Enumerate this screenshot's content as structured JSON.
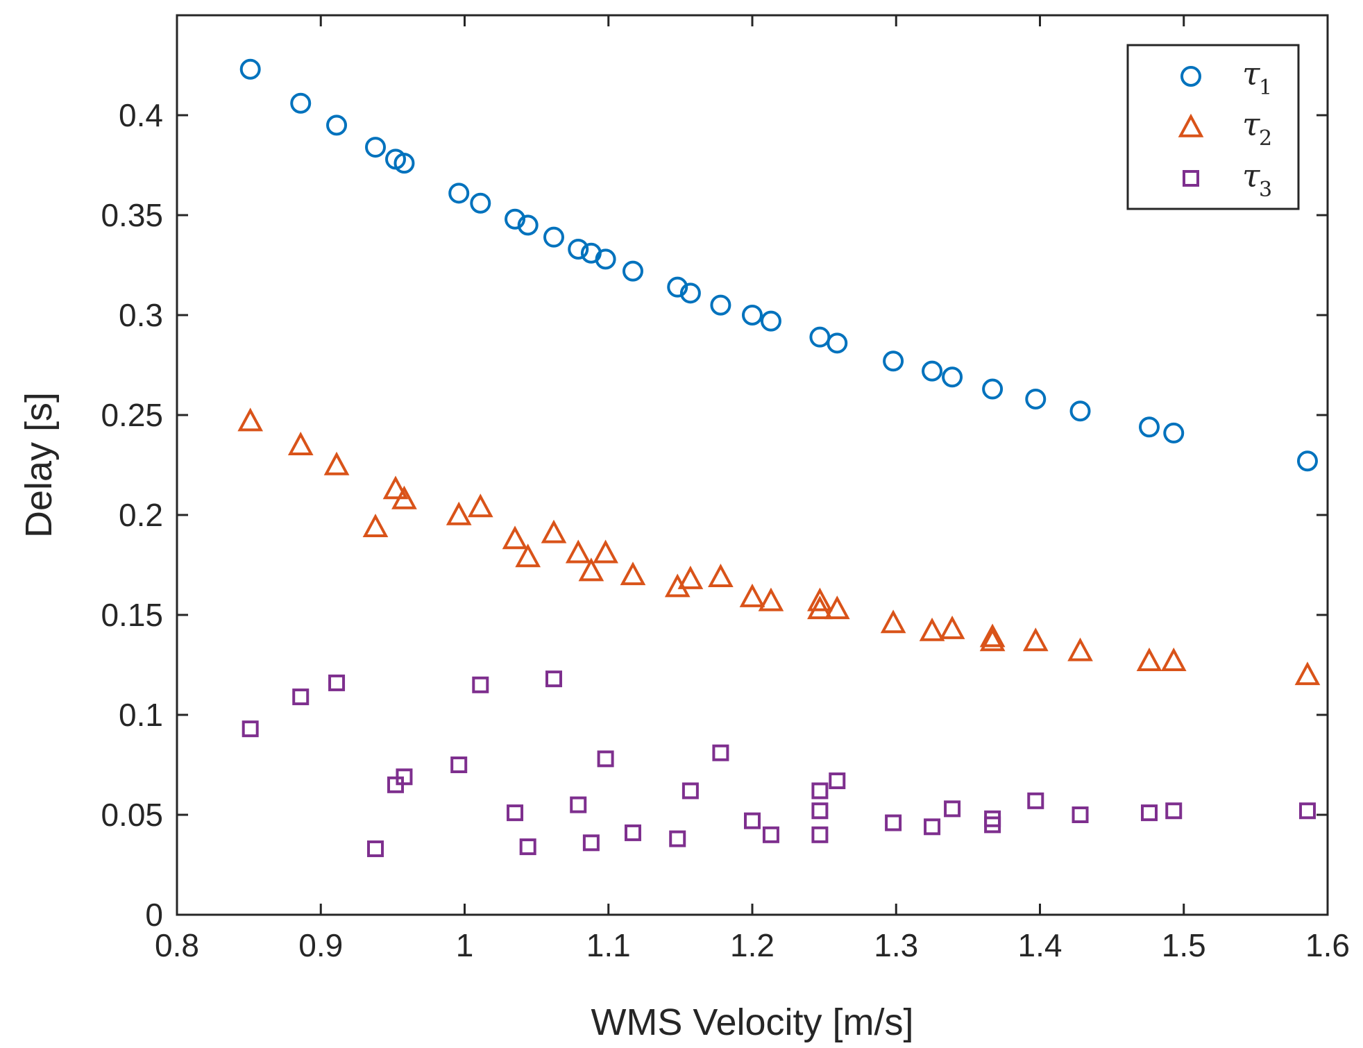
{
  "chart_data": {
    "type": "scatter",
    "title": "",
    "xlabel": "WMS Velocity [m/s]",
    "ylabel": "Delay [s]",
    "xlim": [
      0.8,
      1.6
    ],
    "ylim": [
      0,
      0.45
    ],
    "xticks": [
      "0.8",
      "0.9",
      "1",
      "1.1",
      "1.2",
      "1.3",
      "1.4",
      "1.5",
      "1.6"
    ],
    "yticks": [
      "0",
      "0.05",
      "0.1",
      "0.15",
      "0.2",
      "0.25",
      "0.3",
      "0.35",
      "0.4"
    ],
    "grid": false,
    "legend_position": "top-right",
    "series": [
      {
        "name": "τ1",
        "symbol": "τ",
        "subscript": "1",
        "marker": "circle",
        "color": "#0072BD",
        "points": [
          [
            0.851,
            0.423
          ],
          [
            0.886,
            0.406
          ],
          [
            0.911,
            0.395
          ],
          [
            0.938,
            0.384
          ],
          [
            0.952,
            0.378
          ],
          [
            0.958,
            0.376
          ],
          [
            0.996,
            0.361
          ],
          [
            1.011,
            0.356
          ],
          [
            1.035,
            0.348
          ],
          [
            1.044,
            0.345
          ],
          [
            1.062,
            0.339
          ],
          [
            1.079,
            0.333
          ],
          [
            1.088,
            0.331
          ],
          [
            1.098,
            0.328
          ],
          [
            1.117,
            0.322
          ],
          [
            1.148,
            0.314
          ],
          [
            1.157,
            0.311
          ],
          [
            1.178,
            0.305
          ],
          [
            1.2,
            0.3
          ],
          [
            1.213,
            0.297
          ],
          [
            1.247,
            0.289
          ],
          [
            1.259,
            0.286
          ],
          [
            1.298,
            0.277
          ],
          [
            1.325,
            0.272
          ],
          [
            1.339,
            0.269
          ],
          [
            1.367,
            0.263
          ],
          [
            1.397,
            0.258
          ],
          [
            1.428,
            0.252
          ],
          [
            1.476,
            0.244
          ],
          [
            1.493,
            0.241
          ],
          [
            1.586,
            0.227
          ]
        ]
      },
      {
        "name": "τ2",
        "symbol": "τ",
        "subscript": "2",
        "marker": "triangle",
        "color": "#D95319",
        "points": [
          [
            0.851,
            0.247
          ],
          [
            0.886,
            0.235
          ],
          [
            0.911,
            0.225
          ],
          [
            0.938,
            0.194
          ],
          [
            0.952,
            0.213
          ],
          [
            0.958,
            0.208
          ],
          [
            0.996,
            0.2
          ],
          [
            1.011,
            0.204
          ],
          [
            1.035,
            0.188
          ],
          [
            1.044,
            0.179
          ],
          [
            1.062,
            0.191
          ],
          [
            1.079,
            0.181
          ],
          [
            1.088,
            0.172
          ],
          [
            1.098,
            0.181
          ],
          [
            1.117,
            0.17
          ],
          [
            1.148,
            0.164
          ],
          [
            1.157,
            0.168
          ],
          [
            1.178,
            0.169
          ],
          [
            1.2,
            0.159
          ],
          [
            1.213,
            0.157
          ],
          [
            1.247,
            0.157
          ],
          [
            1.247,
            0.153
          ],
          [
            1.259,
            0.153
          ],
          [
            1.298,
            0.146
          ],
          [
            1.325,
            0.142
          ],
          [
            1.339,
            0.143
          ],
          [
            1.367,
            0.139
          ],
          [
            1.367,
            0.137
          ],
          [
            1.397,
            0.137
          ],
          [
            1.428,
            0.132
          ],
          [
            1.476,
            0.127
          ],
          [
            1.493,
            0.127
          ],
          [
            1.586,
            0.12
          ]
        ]
      },
      {
        "name": "τ3",
        "symbol": "τ",
        "subscript": "3",
        "marker": "square",
        "color": "#7E2F8E",
        "points": [
          [
            0.851,
            0.093
          ],
          [
            0.886,
            0.109
          ],
          [
            0.911,
            0.116
          ],
          [
            0.938,
            0.033
          ],
          [
            0.952,
            0.065
          ],
          [
            0.958,
            0.069
          ],
          [
            0.996,
            0.075
          ],
          [
            1.011,
            0.115
          ],
          [
            1.035,
            0.051
          ],
          [
            1.044,
            0.034
          ],
          [
            1.062,
            0.118
          ],
          [
            1.079,
            0.055
          ],
          [
            1.088,
            0.036
          ],
          [
            1.098,
            0.078
          ],
          [
            1.117,
            0.041
          ],
          [
            1.148,
            0.038
          ],
          [
            1.157,
            0.062
          ],
          [
            1.178,
            0.081
          ],
          [
            1.2,
            0.047
          ],
          [
            1.213,
            0.04
          ],
          [
            1.247,
            0.062
          ],
          [
            1.247,
            0.052
          ],
          [
            1.247,
            0.04
          ],
          [
            1.259,
            0.067
          ],
          [
            1.298,
            0.046
          ],
          [
            1.325,
            0.044
          ],
          [
            1.339,
            0.053
          ],
          [
            1.367,
            0.048
          ],
          [
            1.367,
            0.045
          ],
          [
            1.397,
            0.057
          ],
          [
            1.428,
            0.05
          ],
          [
            1.476,
            0.051
          ],
          [
            1.493,
            0.052
          ],
          [
            1.586,
            0.052
          ]
        ]
      }
    ]
  }
}
